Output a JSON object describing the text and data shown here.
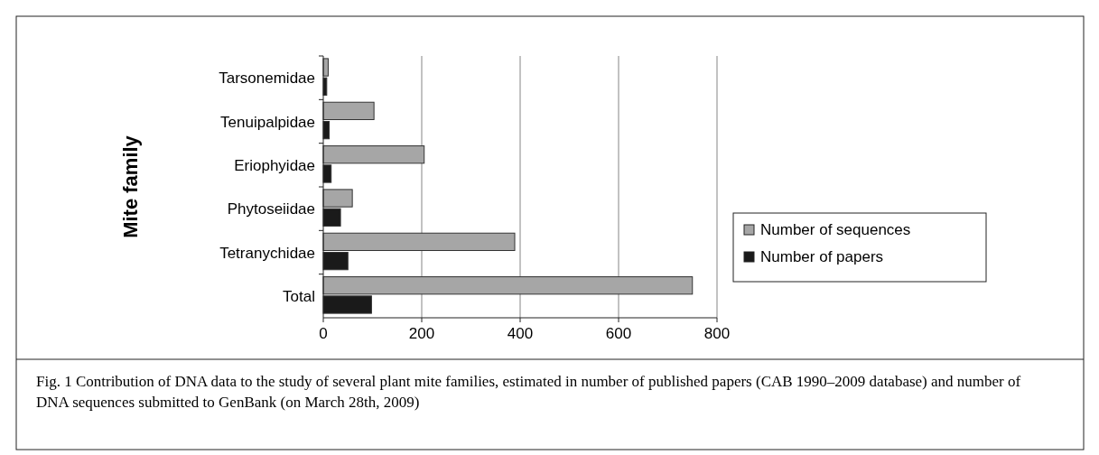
{
  "chart_data": {
    "type": "bar",
    "orientation": "horizontal",
    "ylabel": "Mite family",
    "categories": [
      "Tarsonemidae",
      "Tenuipalpidae",
      "Eriophyidae",
      "Phytoseiidae",
      "Tetranychidae",
      "Total"
    ],
    "series": [
      {
        "name": "Number of sequences",
        "color": "#a6a6a6",
        "values": [
          10,
          103,
          205,
          59,
          389,
          750
        ]
      },
      {
        "name": "Number of papers",
        "color": "#1a1a1a",
        "values": [
          7,
          12,
          16,
          35,
          50,
          98
        ]
      }
    ],
    "xlim": [
      0,
      800
    ],
    "xticks": [
      0,
      200,
      400,
      600,
      800
    ],
    "grid": "x",
    "legend": "right",
    "annotations": [
      "Fig. 1  Contribution of DNA data to the study of several plant mite families, estimated in number of published papers (CAB 1990–2009 database) and number of DNA sequences submitted to GenBank (on March 28th, 2009)"
    ]
  }
}
